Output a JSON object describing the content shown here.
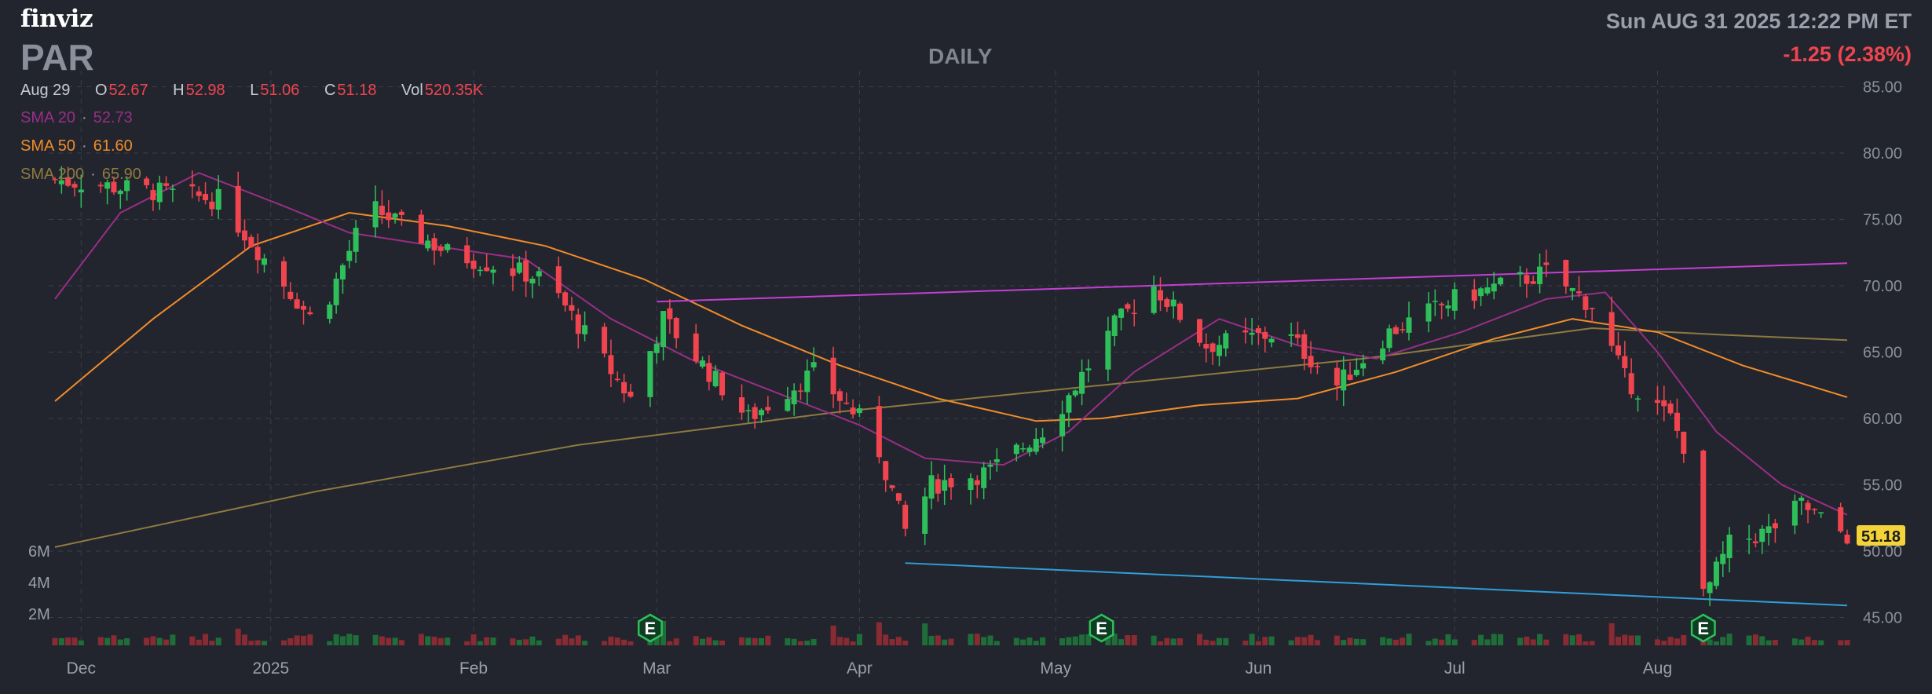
{
  "header": {
    "logo": "finviz",
    "ticker": "PAR",
    "timeframe": "DAILY",
    "datetime": "Sun AUG 31 2025 12:22 PM ET",
    "change": "-1.25 (2.38%)",
    "last_price": "51.18"
  },
  "ohlc": {
    "date": "Aug 29",
    "o_label": "O",
    "o": "52.67",
    "h_label": "H",
    "h": "52.98",
    "l_label": "L",
    "l": "51.06",
    "c_label": "C",
    "c": "51.18",
    "vol_label": "Vol",
    "vol": "520.35K"
  },
  "indicators": [
    {
      "name": "SMA 20",
      "value": "52.73",
      "color": "#9a2e86"
    },
    {
      "name": "SMA 50",
      "value": "61.60",
      "color": "#f08c2a"
    },
    {
      "name": "SMA 200",
      "value": "65.90",
      "color": "#8e7a40"
    }
  ],
  "colors": {
    "background": "#22252e",
    "up": "#2fbf5a",
    "down": "#f0444f",
    "grid": "#3a3e49",
    "resistance": "#c43fd2",
    "support": "#2f9fd8",
    "last_price_bg": "#f4d33a"
  },
  "chart_data": {
    "type": "candlestick",
    "y_axis_ticks": [
      "85.00",
      "80.00",
      "75.00",
      "70.00",
      "65.00",
      "60.00",
      "55.00",
      "50.00",
      "45.00"
    ],
    "ylim": [
      44.2,
      85.5
    ],
    "volume_ticks": [
      "6M",
      "4M",
      "2M"
    ],
    "x_axis_labels": [
      {
        "label": "Dec",
        "day": 4
      },
      {
        "label": "2025",
        "day": 33
      },
      {
        "label": "Feb",
        "day": 64
      },
      {
        "label": "Mar",
        "day": 92
      },
      {
        "label": "Apr",
        "day": 123
      },
      {
        "label": "May",
        "day": 153
      },
      {
        "label": "Jun",
        "day": 184
      },
      {
        "label": "Jul",
        "day": 214
      },
      {
        "label": "Aug",
        "day": 245
      }
    ],
    "x_range_days": [
      0,
      274
    ],
    "earnings_markers": [
      {
        "label": "E",
        "day": 91
      },
      {
        "label": "E",
        "day": 160
      },
      {
        "label": "E",
        "day": 252
      }
    ],
    "key_points": [
      {
        "day": 0,
        "close": 78.0
      },
      {
        "day": 25,
        "close": 76.5
      },
      {
        "day": 40,
        "close": 67.0
      },
      {
        "day": 48,
        "close": 76.0
      },
      {
        "day": 60,
        "close": 72.5
      },
      {
        "day": 75,
        "close": 70.5
      },
      {
        "day": 88,
        "close": 61.5
      },
      {
        "day": 93,
        "close": 67.5
      },
      {
        "day": 106,
        "close": 60.0
      },
      {
        "day": 116,
        "close": 63.5
      },
      {
        "day": 125,
        "close": 59.0
      },
      {
        "day": 130,
        "close": 51.5
      },
      {
        "day": 134,
        "close": 55.0
      },
      {
        "day": 143,
        "close": 56.0
      },
      {
        "day": 152,
        "close": 59.5
      },
      {
        "day": 162,
        "close": 67.0
      },
      {
        "day": 168,
        "close": 70.0
      },
      {
        "day": 176,
        "close": 65.5
      },
      {
        "day": 188,
        "close": 66.5
      },
      {
        "day": 196,
        "close": 62.5
      },
      {
        "day": 204,
        "close": 66.5
      },
      {
        "day": 214,
        "close": 69.0
      },
      {
        "day": 228,
        "close": 71.0
      },
      {
        "day": 235,
        "close": 68.5
      },
      {
        "day": 240,
        "close": 63.0
      },
      {
        "day": 247,
        "close": 60.0
      },
      {
        "day": 250,
        "close": 57.0
      },
      {
        "day": 252,
        "close": 46.5
      },
      {
        "day": 256,
        "close": 50.5
      },
      {
        "day": 262,
        "close": 51.5
      },
      {
        "day": 267,
        "close": 53.5
      },
      {
        "day": 271,
        "close": 52.0
      },
      {
        "day": 274,
        "close": 51.18
      }
    ],
    "sma20_points": [
      {
        "day": 0,
        "v": 69.0
      },
      {
        "day": 10,
        "v": 75.5
      },
      {
        "day": 22,
        "v": 78.5
      },
      {
        "day": 35,
        "v": 76.0
      },
      {
        "day": 45,
        "v": 74.0
      },
      {
        "day": 58,
        "v": 73.0
      },
      {
        "day": 72,
        "v": 72.0
      },
      {
        "day": 85,
        "v": 67.5
      },
      {
        "day": 97,
        "v": 64.5
      },
      {
        "day": 110,
        "v": 62.0
      },
      {
        "day": 123,
        "v": 59.5
      },
      {
        "day": 133,
        "v": 57.0
      },
      {
        "day": 145,
        "v": 56.5
      },
      {
        "day": 155,
        "v": 59.0
      },
      {
        "day": 165,
        "v": 63.5
      },
      {
        "day": 178,
        "v": 67.5
      },
      {
        "day": 190,
        "v": 65.5
      },
      {
        "day": 202,
        "v": 64.5
      },
      {
        "day": 215,
        "v": 66.5
      },
      {
        "day": 228,
        "v": 69.0
      },
      {
        "day": 237,
        "v": 69.5
      },
      {
        "day": 245,
        "v": 65.0
      },
      {
        "day": 254,
        "v": 59.0
      },
      {
        "day": 264,
        "v": 55.0
      },
      {
        "day": 274,
        "v": 52.73
      }
    ],
    "sma50_points": [
      {
        "day": 0,
        "v": 61.3
      },
      {
        "day": 15,
        "v": 67.5
      },
      {
        "day": 30,
        "v": 73.0
      },
      {
        "day": 45,
        "v": 75.5
      },
      {
        "day": 60,
        "v": 74.5
      },
      {
        "day": 75,
        "v": 73.0
      },
      {
        "day": 90,
        "v": 70.5
      },
      {
        "day": 105,
        "v": 67.0
      },
      {
        "day": 120,
        "v": 64.0
      },
      {
        "day": 135,
        "v": 61.5
      },
      {
        "day": 150,
        "v": 59.8
      },
      {
        "day": 160,
        "v": 60.0
      },
      {
        "day": 175,
        "v": 61.0
      },
      {
        "day": 190,
        "v": 61.5
      },
      {
        "day": 205,
        "v": 63.5
      },
      {
        "day": 220,
        "v": 66.0
      },
      {
        "day": 232,
        "v": 67.5
      },
      {
        "day": 245,
        "v": 66.5
      },
      {
        "day": 258,
        "v": 64.0
      },
      {
        "day": 274,
        "v": 61.6
      }
    ],
    "sma200_points": [
      {
        "day": 0,
        "v": 50.3
      },
      {
        "day": 40,
        "v": 54.5
      },
      {
        "day": 80,
        "v": 58.0
      },
      {
        "day": 120,
        "v": 60.5
      },
      {
        "day": 160,
        "v": 62.5
      },
      {
        "day": 200,
        "v": 64.5
      },
      {
        "day": 235,
        "v": 66.8
      },
      {
        "day": 255,
        "v": 66.3
      },
      {
        "day": 274,
        "v": 65.9
      }
    ],
    "trendlines": [
      {
        "name": "resistance",
        "from": {
          "day": 92,
          "v": 68.8
        },
        "to": {
          "day": 274,
          "v": 71.7
        }
      },
      {
        "name": "support",
        "from": {
          "day": 130,
          "v": 49.1
        },
        "to": {
          "day": 274,
          "v": 45.9
        }
      }
    ]
  }
}
